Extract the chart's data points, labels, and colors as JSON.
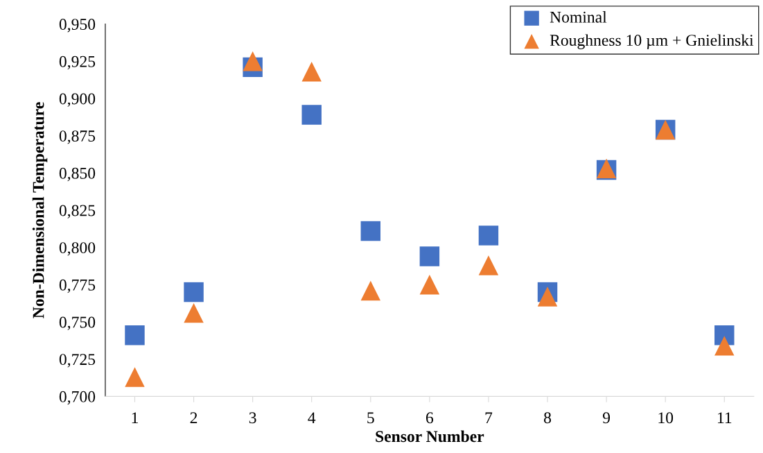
{
  "chart_data": {
    "type": "scatter",
    "xlabel": "Sensor Number",
    "ylabel": "Non-Dimensional Temperature",
    "categories": [
      "1",
      "2",
      "3",
      "4",
      "5",
      "6",
      "7",
      "8",
      "9",
      "10",
      "11"
    ],
    "series": [
      {
        "name": "Nominal",
        "color": "#4472c4",
        "marker": "square",
        "values": [
          0.741,
          0.77,
          0.921,
          0.889,
          0.811,
          0.794,
          0.808,
          0.77,
          0.852,
          0.879,
          0.741
        ]
      },
      {
        "name": "Roughness 10 µm + Gnielinski",
        "color": "#ed7d31",
        "marker": "triangle",
        "values": [
          0.713,
          0.756,
          0.925,
          0.918,
          0.771,
          0.775,
          0.788,
          0.767,
          0.853,
          0.879,
          0.734
        ]
      }
    ],
    "ylim": [
      0.7,
      0.95
    ],
    "yticks": [
      {
        "value": 0.7,
        "label": "0,700"
      },
      {
        "value": 0.725,
        "label": "0,725"
      },
      {
        "value": 0.75,
        "label": "0,750"
      },
      {
        "value": 0.775,
        "label": "0,775"
      },
      {
        "value": 0.8,
        "label": "0,800"
      },
      {
        "value": 0.825,
        "label": "0,825"
      },
      {
        "value": 0.85,
        "label": "0,850"
      },
      {
        "value": 0.875,
        "label": "0,875"
      },
      {
        "value": 0.9,
        "label": "0,900"
      },
      {
        "value": 0.925,
        "label": "0,925"
      },
      {
        "value": 0.95,
        "label": "0,950"
      }
    ],
    "grid": false,
    "legend": "top right"
  }
}
